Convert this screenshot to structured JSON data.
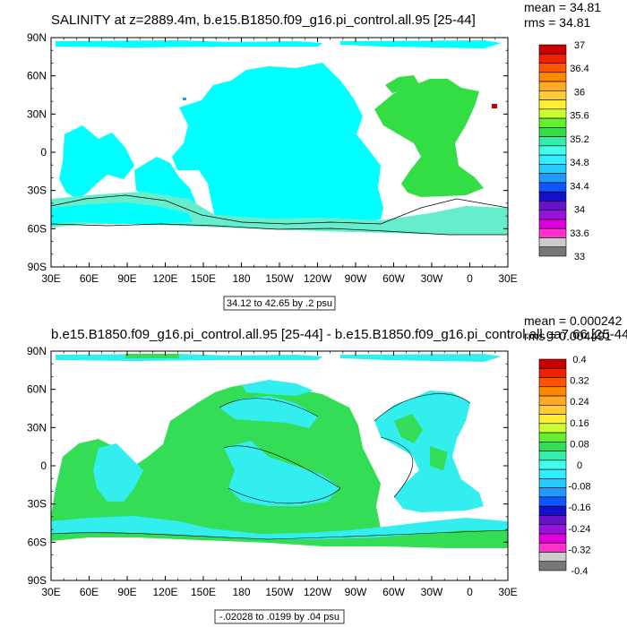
{
  "panels": [
    {
      "title": "SALINITY at z=2889.4m, b.e15.B1850.f09_g16.pi_control.all.95 [25-44]",
      "stats": {
        "mean": "mean = 34.81",
        "rms": "rms = 34.81"
      },
      "contour_info": "34.12 to 42.65 by .2 psu"
    },
    {
      "title": "b.e15.B1850.f09_g16.pi_control.all.95 [25-44] - b.e15.B1850.f09_g16.pi_control.all.ga7.66 [25-44]",
      "stats": {
        "mean": "mean = 0.000242",
        "rms": "rms = 0.004491"
      },
      "contour_info": "-.02028 to .0199 by .04 psu"
    }
  ],
  "colors": {
    "top_ocean": "#00ffff",
    "top_atlantic": "#33dd44",
    "top_south": "#66eecc",
    "bottom_main": "#33dd55",
    "bottom_cyan": "#33eeee",
    "accent_red": "#c80000"
  },
  "chart_data": [
    {
      "type": "heatmap",
      "title": "SALINITY at z=2889.4m, b.e15.B1850.f09_g16.pi_control.all.95 [25-44]",
      "x_tick_labels": [
        "30E",
        "60E",
        "90E",
        "120E",
        "150E",
        "180",
        "150W",
        "120W",
        "90W",
        "60W",
        "30W",
        "0",
        "30E"
      ],
      "y_tick_labels": [
        "90N",
        "60N",
        "30N",
        "0",
        "30S",
        "60S",
        "90S"
      ],
      "colorbar": {
        "labels": [
          "37",
          "36.4",
          "36",
          "35.6",
          "35.2",
          "34.8",
          "34.4",
          "34",
          "33.6",
          "33"
        ],
        "colors": [
          "#c80000",
          "#ee2200",
          "#ff5500",
          "#ff8800",
          "#ffaa22",
          "#ffcc33",
          "#ffee33",
          "#ccff33",
          "#66ee33",
          "#33dd44",
          "#33eeaa",
          "#44ffee",
          "#33eeff",
          "#22ccff",
          "#2299ff",
          "#1155ff",
          "#1111cc",
          "#6611cc",
          "#9911dd",
          "#dd00dd",
          "#ff33cc",
          "#cccccc",
          "#777777"
        ]
      }
    },
    {
      "type": "heatmap",
      "title": "b.e15.B1850.f09_g16.pi_control.all.95 [25-44] - b.e15.B1850.f09_g16.pi_control.all.ga7.66 [25-44]",
      "x_tick_labels": [
        "30E",
        "60E",
        "90E",
        "120E",
        "150E",
        "180",
        "150W",
        "120W",
        "90W",
        "60W",
        "30W",
        "0",
        "30E"
      ],
      "y_tick_labels": [
        "90N",
        "60N",
        "30N",
        "0",
        "30S",
        "60S",
        "90S"
      ],
      "colorbar": {
        "labels": [
          "0.4",
          "0.32",
          "0.24",
          "0.16",
          "0.08",
          "0",
          "-0.08",
          "-0.16",
          "-0.24",
          "-0.32",
          "-0.4"
        ],
        "colors": [
          "#c80000",
          "#ee2200",
          "#ff5500",
          "#ff8800",
          "#ffaa22",
          "#ffcc33",
          "#ffee33",
          "#ccff33",
          "#66ee33",
          "#33dd55",
          "#33eeaa",
          "#44ffee",
          "#33eeff",
          "#22ccff",
          "#2299ff",
          "#1155ff",
          "#1111cc",
          "#6611cc",
          "#9911dd",
          "#dd00dd",
          "#ff33cc",
          "#cccccc",
          "#777777"
        ]
      }
    }
  ]
}
